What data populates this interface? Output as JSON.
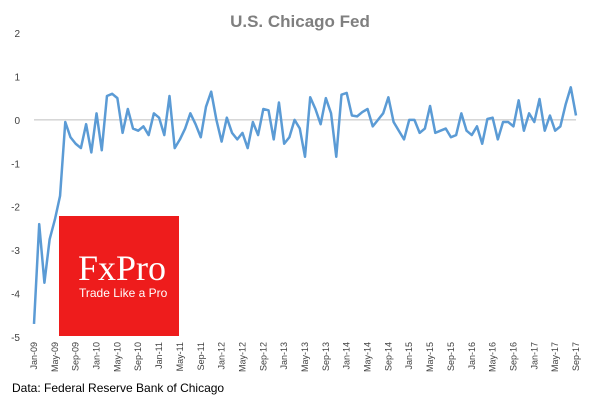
{
  "chart_data": {
    "type": "line",
    "title": "U.S. Chicago Fed",
    "xlabel": "",
    "ylabel": "",
    "ylim": [
      -5,
      2
    ],
    "yticks": [
      "2",
      "1",
      "0",
      "-1",
      "-2",
      "-3",
      "-4",
      "-5"
    ],
    "grid": false,
    "legend": "none",
    "xtick_labels": [
      "Jan-09",
      "May-09",
      "Sep-09",
      "Jan-10",
      "May-10",
      "Sep-10",
      "Jan-11",
      "May-11",
      "Sep-11",
      "Jan-12",
      "May-12",
      "Sep-12",
      "Jan-13",
      "May-13",
      "Sep-13",
      "Jan-14",
      "May-14",
      "Sep-14",
      "Jan-15",
      "May-15",
      "Sep-15",
      "Jan-16",
      "May-16",
      "Sep-16",
      "Jan-17",
      "May-17",
      "Sep-17"
    ],
    "series": [
      {
        "color": "#5b9bd5",
        "values": [
          -4.7,
          -2.4,
          -3.75,
          -2.75,
          -2.3,
          -1.75,
          -0.05,
          -0.4,
          -0.55,
          -0.65,
          -0.1,
          -0.75,
          0.15,
          -0.7,
          0.55,
          0.6,
          0.5,
          -0.3,
          0.25,
          -0.2,
          -0.25,
          -0.15,
          -0.35,
          0.15,
          0.05,
          -0.35,
          0.55,
          -0.65,
          -0.45,
          -0.2,
          0.15,
          -0.1,
          -0.4,
          0.3,
          0.65,
          0.0,
          -0.5,
          0.05,
          -0.3,
          -0.45,
          -0.3,
          -0.65,
          -0.05,
          -0.35,
          0.25,
          0.22,
          -0.45,
          0.4,
          -0.55,
          -0.4,
          0.0,
          -0.2,
          -0.85,
          0.52,
          0.25,
          -0.1,
          0.5,
          0.15,
          -0.85,
          0.58,
          0.62,
          0.1,
          0.08,
          0.18,
          0.25,
          -0.15,
          0.0,
          0.15,
          0.52,
          -0.05,
          -0.25,
          -0.45,
          0.0,
          0.0,
          -0.3,
          -0.2,
          0.32,
          -0.3,
          -0.25,
          -0.2,
          -0.4,
          -0.35,
          0.15,
          -0.25,
          -0.35,
          -0.15,
          -0.55,
          0.02,
          0.05,
          -0.45,
          -0.05,
          -0.05,
          -0.15,
          0.45,
          -0.25,
          0.15,
          -0.05,
          0.48,
          -0.25,
          0.1,
          -0.25,
          -0.15,
          0.35,
          0.75,
          0.1
        ]
      }
    ]
  },
  "watermark": {
    "brand": "FxPro",
    "tagline": "Trade Like a Pro",
    "color": "#ee1c1c"
  },
  "source_note": "Data: Federal Reserve Bank of Chicago"
}
